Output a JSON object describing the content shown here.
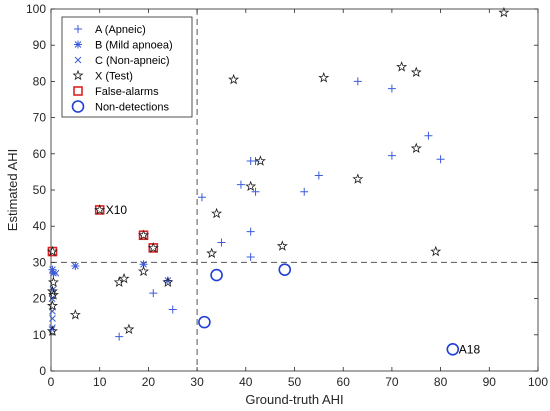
{
  "chart_data": {
    "type": "scatter",
    "xlabel": "Ground-truth AHI",
    "ylabel": "Estimated AHI",
    "xlim": [
      0,
      100
    ],
    "ylim": [
      0,
      100
    ],
    "x_ticks": [
      "0",
      "10",
      "20",
      "30",
      "40",
      "50",
      "60",
      "70",
      "80",
      "90",
      "100"
    ],
    "y_ticks": [
      "0",
      "10",
      "20",
      "30",
      "40",
      "50",
      "60",
      "70",
      "80",
      "90",
      "100"
    ],
    "grid": false,
    "legend_position": "top-left",
    "threshold": {
      "x": 30,
      "y": 30,
      "style": "dashed"
    },
    "colors": {
      "blue": "#3b5bdb",
      "dark": "#1a1a1a",
      "red": "#dd2222",
      "detect_blue": "#1f3fd6"
    },
    "series": [
      {
        "name": "A (Apneic)",
        "marker": "plus",
        "points": [
          [
            31,
            48
          ],
          [
            35,
            35.5
          ],
          [
            39,
            51.5
          ],
          [
            41,
            58
          ],
          [
            42,
            58
          ],
          [
            41,
            38.5
          ],
          [
            42,
            49.5
          ],
          [
            41,
            31.5
          ],
          [
            52,
            49.5
          ],
          [
            55,
            54
          ],
          [
            63,
            80
          ],
          [
            70,
            78
          ],
          [
            70,
            59.5
          ],
          [
            77.5,
            65
          ],
          [
            80,
            58.5
          ],
          [
            14,
            9.5
          ],
          [
            21,
            21.5
          ],
          [
            25,
            17
          ]
        ]
      },
      {
        "name": "B (Mild apnoea)",
        "marker": "asterisk",
        "points": [
          [
            0.3,
            28
          ],
          [
            0.5,
            27
          ],
          [
            5,
            29
          ],
          [
            19,
            29.5
          ],
          [
            24,
            25
          ]
        ]
      },
      {
        "name": "C (Non-apneic)",
        "marker": "x",
        "points": [
          [
            0.2,
            11.5
          ],
          [
            0.3,
            14.5
          ],
          [
            0.3,
            16.5
          ],
          [
            0.2,
            20
          ],
          [
            0.4,
            22.5
          ],
          [
            1,
            27
          ],
          [
            0.3,
            12
          ]
        ]
      },
      {
        "name": "X (Test)",
        "marker": "star",
        "points": [
          [
            93,
            99
          ],
          [
            72,
            84
          ],
          [
            75,
            82.5
          ],
          [
            56,
            81
          ],
          [
            37.5,
            80.5
          ],
          [
            75,
            61.5
          ],
          [
            63,
            53
          ],
          [
            41,
            51
          ],
          [
            43,
            58
          ],
          [
            34,
            43.5
          ],
          [
            47.5,
            34.5
          ],
          [
            33,
            32.5
          ],
          [
            79,
            33
          ],
          [
            10,
            44.5
          ],
          [
            19,
            37.5
          ],
          [
            21,
            34
          ],
          [
            5,
            15.5
          ],
          [
            14,
            24.5
          ],
          [
            15,
            25.5
          ],
          [
            19,
            27.5
          ],
          [
            24,
            24.5
          ],
          [
            16,
            11.5
          ],
          [
            0.3,
            22
          ],
          [
            0.5,
            21
          ],
          [
            0.3,
            18
          ],
          [
            0.3,
            11
          ],
          [
            0.5,
            24.5
          ],
          [
            0.3,
            33
          ]
        ]
      }
    ],
    "false_alarms": [
      [
        0.3,
        33
      ],
      [
        10,
        44.5
      ],
      [
        19,
        37.5
      ],
      [
        21,
        34
      ]
    ],
    "non_detections": [
      [
        31.5,
        13.5
      ],
      [
        34,
        26.5
      ],
      [
        48,
        28
      ],
      [
        82.5,
        6
      ]
    ],
    "legend": [
      "A (Apneic)",
      "B (Mild apnoea)",
      "C (Non-apneic)",
      "X (Test)",
      "False-alarms",
      "Non-detections"
    ],
    "annotations": [
      {
        "text": "X10",
        "x": 10,
        "y": 44.5
      },
      {
        "text": "A18",
        "x": 82.5,
        "y": 6
      }
    ]
  }
}
